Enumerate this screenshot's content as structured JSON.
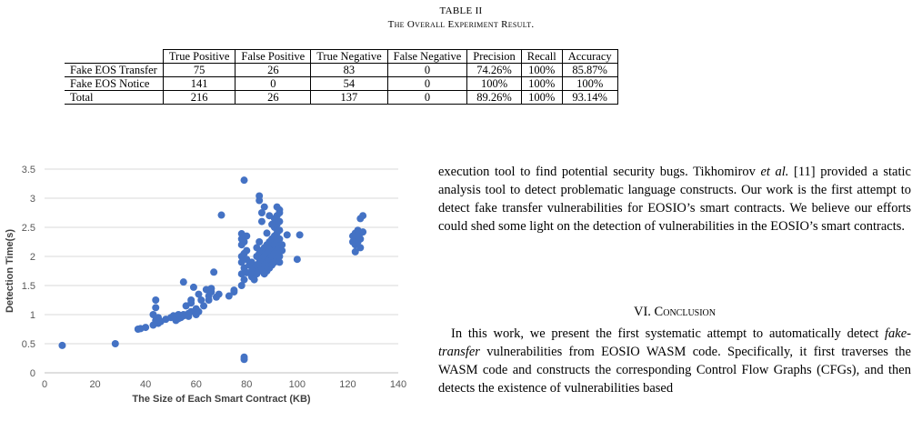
{
  "table": {
    "caption_number": "TABLE II",
    "caption_title": "The Overall Experiment Result.",
    "headers": [
      "True Positive",
      "False Positive",
      "True Negative",
      "False Negative",
      "Precision",
      "Recall",
      "Accuracy"
    ],
    "rows": [
      {
        "label": "Fake EOS Transfer",
        "cells": [
          "75",
          "26",
          "83",
          "0",
          "74.26%",
          "100%",
          "85.87%"
        ]
      },
      {
        "label": "Fake EOS Notice",
        "cells": [
          "141",
          "0",
          "54",
          "0",
          "100%",
          "100%",
          "100%"
        ]
      },
      {
        "label": "Total",
        "cells": [
          "216",
          "26",
          "137",
          "0",
          "89.26%",
          "100%",
          "93.14%"
        ]
      }
    ]
  },
  "chart_data": {
    "type": "scatter",
    "title": "",
    "xlabel": "The Size of Each Smart Contract (KB)",
    "ylabel": "Detection Time(s)",
    "xlim": [
      0,
      140
    ],
    "ylim": [
      0,
      3.5
    ],
    "xticks": [
      "0",
      "20",
      "40",
      "60",
      "80",
      "100",
      "120",
      "140"
    ],
    "yticks": [
      "0",
      "0.5",
      "1",
      "1.5",
      "2",
      "2.5",
      "3",
      "3.5"
    ],
    "grid": "horizontal",
    "color": "#4472c4",
    "points": [
      [
        7,
        0.47
      ],
      [
        28,
        0.5
      ],
      [
        37,
        0.75
      ],
      [
        38,
        0.76
      ],
      [
        40,
        0.78
      ],
      [
        43,
        0.82
      ],
      [
        43,
        1.0
      ],
      [
        44,
        1.12
      ],
      [
        44,
        1.25
      ],
      [
        44,
        0.9
      ],
      [
        45,
        0.95
      ],
      [
        45,
        0.85
      ],
      [
        46,
        0.88
      ],
      [
        48,
        0.92
      ],
      [
        50,
        0.95
      ],
      [
        51,
        0.98
      ],
      [
        52,
        0.9
      ],
      [
        53,
        0.93
      ],
      [
        53,
        1.0
      ],
      [
        54,
        0.95
      ],
      [
        55,
        0.98
      ],
      [
        55,
        1.0
      ],
      [
        55,
        1.56
      ],
      [
        56,
        1.15
      ],
      [
        57,
        0.97
      ],
      [
        57,
        1.02
      ],
      [
        58,
        1.05
      ],
      [
        58,
        1.25
      ],
      [
        58,
        1.2
      ],
      [
        59,
        1.47
      ],
      [
        60,
        1.0
      ],
      [
        60,
        1.1
      ],
      [
        61,
        1.05
      ],
      [
        61,
        1.35
      ],
      [
        62,
        1.25
      ],
      [
        63,
        1.15
      ],
      [
        64,
        1.43
      ],
      [
        65,
        1.32
      ],
      [
        65,
        1.25
      ],
      [
        66,
        1.39
      ],
      [
        66,
        1.45
      ],
      [
        67,
        1.73
      ],
      [
        68,
        1.3
      ],
      [
        69,
        1.35
      ],
      [
        70,
        2.71
      ],
      [
        73,
        1.32
      ],
      [
        75,
        1.39
      ],
      [
        75,
        1.42
      ],
      [
        78,
        1.5
      ],
      [
        78,
        1.7
      ],
      [
        78,
        1.9
      ],
      [
        78,
        2.0
      ],
      [
        78,
        2.2
      ],
      [
        78,
        2.3
      ],
      [
        78,
        2.39
      ],
      [
        79,
        1.6
      ],
      [
        79,
        1.8
      ],
      [
        79,
        2.05
      ],
      [
        79,
        2.25
      ],
      [
        79,
        3.31
      ],
      [
        79,
        0.27
      ],
      [
        79,
        0.23
      ],
      [
        80,
        1.72
      ],
      [
        80,
        1.95
      ],
      [
        80,
        2.1
      ],
      [
        80,
        2.35
      ],
      [
        81,
        1.85
      ],
      [
        82,
        1.65
      ],
      [
        82,
        1.75
      ],
      [
        82,
        1.9
      ],
      [
        83,
        1.6
      ],
      [
        83,
        1.8
      ],
      [
        84,
        1.7
      ],
      [
        84,
        1.85
      ],
      [
        84,
        2.0
      ],
      [
        84,
        2.15
      ],
      [
        85,
        1.75
      ],
      [
        85,
        1.9
      ],
      [
        85,
        2.05
      ],
      [
        85,
        2.25
      ],
      [
        85,
        3.04
      ],
      [
        85,
        2.96
      ],
      [
        86,
        1.8
      ],
      [
        86,
        1.95
      ],
      [
        86,
        2.1
      ],
      [
        86,
        2.6
      ],
      [
        86,
        2.75
      ],
      [
        87,
        1.7
      ],
      [
        87,
        1.85
      ],
      [
        87,
        2.0
      ],
      [
        87,
        2.15
      ],
      [
        87,
        2.85
      ],
      [
        88,
        1.75
      ],
      [
        88,
        1.9
      ],
      [
        88,
        2.05
      ],
      [
        88,
        2.2
      ],
      [
        88,
        2.4
      ],
      [
        89,
        1.8
      ],
      [
        89,
        1.95
      ],
      [
        89,
        2.1
      ],
      [
        89,
        2.25
      ],
      [
        89,
        2.7
      ],
      [
        90,
        1.85
      ],
      [
        90,
        2.0
      ],
      [
        90,
        2.15
      ],
      [
        90,
        2.3
      ],
      [
        90,
        2.55
      ],
      [
        91,
        1.9
      ],
      [
        91,
        2.05
      ],
      [
        91,
        2.2
      ],
      [
        91,
        2.35
      ],
      [
        91,
        2.5
      ],
      [
        91,
        2.65
      ],
      [
        92,
        1.95
      ],
      [
        92,
        2.1
      ],
      [
        92,
        2.25
      ],
      [
        92,
        2.4
      ],
      [
        92,
        2.55
      ],
      [
        92,
        2.7
      ],
      [
        92,
        2.85
      ],
      [
        93,
        2.0
      ],
      [
        93,
        2.15
      ],
      [
        93,
        2.3
      ],
      [
        93,
        2.45
      ],
      [
        93,
        2.6
      ],
      [
        93,
        2.75
      ],
      [
        93,
        2.8
      ],
      [
        93,
        1.9
      ],
      [
        94,
        2.1
      ],
      [
        94,
        2.2
      ],
      [
        96,
        2.37
      ],
      [
        100,
        1.95
      ],
      [
        101,
        2.37
      ],
      [
        123,
        2.08
      ],
      [
        123,
        2.2
      ],
      [
        123,
        2.3
      ],
      [
        123,
        2.4
      ],
      [
        124,
        2.25
      ],
      [
        124,
        2.35
      ],
      [
        124,
        2.45
      ],
      [
        125,
        2.15
      ],
      [
        125,
        2.3
      ],
      [
        125,
        2.4
      ],
      [
        125,
        2.65
      ],
      [
        126,
        2.42
      ],
      [
        126,
        2.7
      ],
      [
        122,
        2.35
      ],
      [
        122,
        2.25
      ]
    ]
  },
  "text": {
    "p1_a": "execution tool to find potential security bugs. Tikhomirov ",
    "p1_etal": "et al.",
    "p1_b": " [11] provided a static analysis tool to detect problematic language constructs. Our work is the first attempt to detect fake transfer vulnerabilities for EOSIO’s smart contracts. We believe our efforts could shed some light on the detection of vulnerabilities in the EOSIO’s smart contracts.",
    "heading": "VI. Conclusion",
    "p2_a": "In this work, we present the first systematic attempt to automatically detect ",
    "p2_em": "fake-transfer",
    "p2_b": " vulnerabilities from EOSIO WASM code. Specifically, it first traverses the WASM code and constructs the corresponding Control Flow Graphs (CFGs), and then detects the existence of vulnerabilities based"
  }
}
